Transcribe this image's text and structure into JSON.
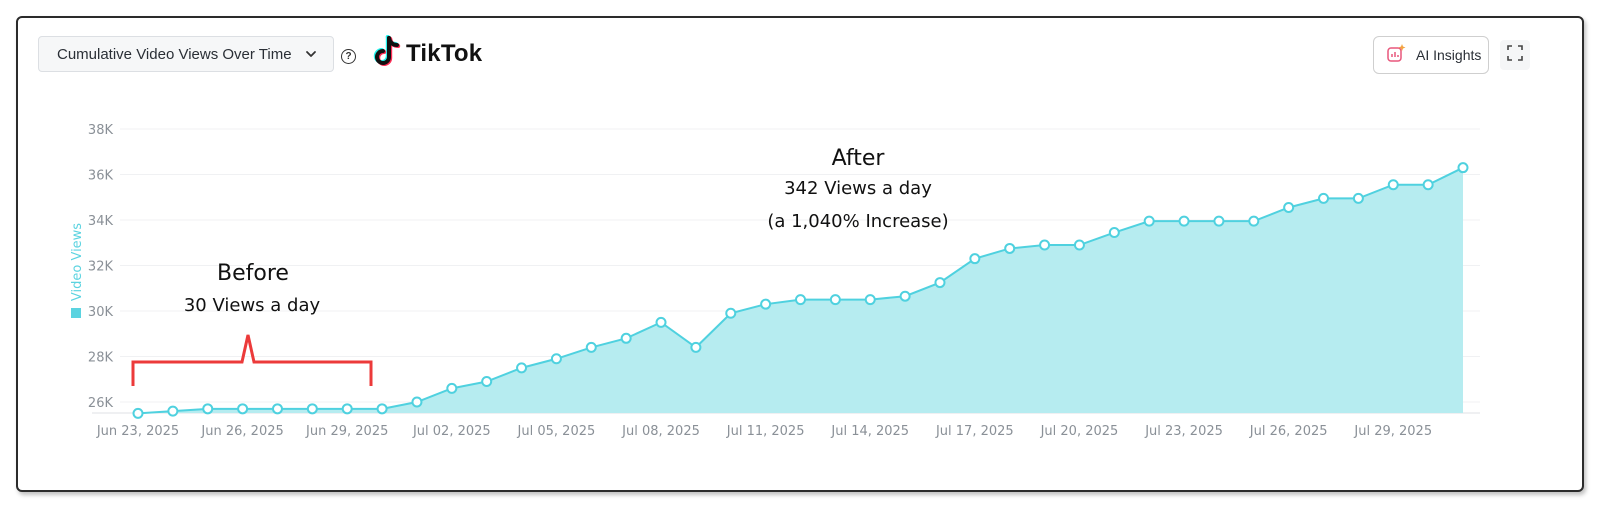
{
  "header": {
    "dropdown_label": "Cumulative Video Views Over Time",
    "logo_text": "TikTok",
    "ai_label": "AI Insights",
    "help_glyph": "?"
  },
  "icons": {
    "dropdown": "chevron-down-icon",
    "help": "question-circle-icon",
    "logo": "tiktok-note-icon",
    "ai": "ai-chart-sparkle-icon",
    "expand": "fullscreen-icon"
  },
  "colors": {
    "line": "#4fd1df",
    "area": "#b6ecf0",
    "annotation_bracket": "#ec3a3a",
    "frame": "#2b2b2b"
  },
  "annotations": {
    "before_title": "Before",
    "before_sub": "30 Views a day",
    "after_title": "After",
    "after_sub1": "342 Views a day",
    "after_sub2": "(a 1,040% Increase)"
  },
  "chart_data": {
    "type": "area",
    "ylabel": "Video Views",
    "xlabel": "",
    "title": "",
    "ylim": [
      25500,
      38500
    ],
    "yticks": [
      26000,
      28000,
      30000,
      32000,
      34000,
      36000,
      38000
    ],
    "ytick_labels": [
      "26K",
      "28K",
      "30K",
      "32K",
      "34K",
      "36K",
      "38K"
    ],
    "x": [
      "Jun 23, 2025",
      "Jun 24, 2025",
      "Jun 25, 2025",
      "Jun 26, 2025",
      "Jun 27, 2025",
      "Jun 28, 2025",
      "Jun 29, 2025",
      "Jun 30, 2025",
      "Jul 01, 2025",
      "Jul 02, 2025",
      "Jul 03, 2025",
      "Jul 04, 2025",
      "Jul 05, 2025",
      "Jul 06, 2025",
      "Jul 07, 2025",
      "Jul 08, 2025",
      "Jul 09, 2025",
      "Jul 10, 2025",
      "Jul 11, 2025",
      "Jul 12, 2025",
      "Jul 13, 2025",
      "Jul 14, 2025",
      "Jul 15, 2025",
      "Jul 16, 2025",
      "Jul 17, 2025",
      "Jul 18, 2025",
      "Jul 19, 2025",
      "Jul 20, 2025",
      "Jul 21, 2025",
      "Jul 22, 2025",
      "Jul 23, 2025",
      "Jul 24, 2025",
      "Jul 25, 2025",
      "Jul 26, 2025",
      "Jul 27, 2025",
      "Jul 28, 2025",
      "Jul 29, 2025",
      "Jul 30, 2025",
      "Jul 31, 2025"
    ],
    "xtick_labels": [
      "Jun 23, 2025",
      "Jun 26, 2025",
      "Jun 29, 2025",
      "Jul 02, 2025",
      "Jul 05, 2025",
      "Jul 08, 2025",
      "Jul 11, 2025",
      "Jul 14, 2025",
      "Jul 17, 2025",
      "Jul 20, 2025",
      "Jul 23, 2025",
      "Jul 26, 2025",
      "Jul 29, 2025"
    ],
    "series": [
      {
        "name": "Video Views",
        "values": [
          25500,
          25600,
          25700,
          25700,
          25700,
          25700,
          25700,
          25700,
          26000,
          26600,
          26900,
          27500,
          27900,
          28400,
          28800,
          29500,
          28400,
          29900,
          30300,
          30500,
          30500,
          30500,
          30650,
          31250,
          32300,
          32750,
          32900,
          32900,
          33450,
          33950,
          33950,
          33950,
          33950,
          34550,
          34950,
          34950,
          35550,
          35550,
          36300
        ]
      }
    ],
    "grid": true,
    "legend": "left-vertical"
  }
}
